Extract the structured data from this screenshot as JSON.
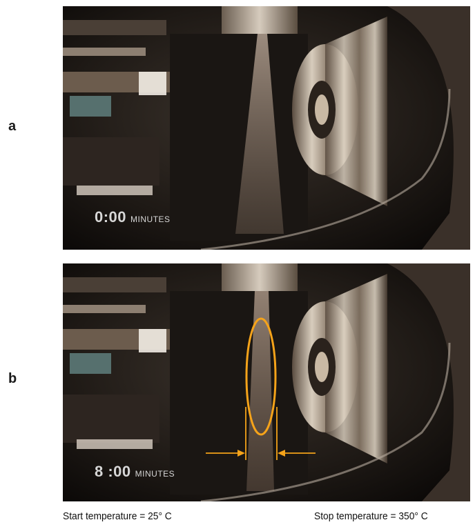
{
  "panels": [
    {
      "label": "a",
      "time": "0:00",
      "unit": "MINUTES"
    },
    {
      "label": "b",
      "time": "8 :00",
      "unit": "MINUTES"
    }
  ],
  "captions": {
    "start": "Start temperature = 25° C",
    "stop": "Stop temperature = 350° C"
  },
  "colors": {
    "highlight": "#f5a31a",
    "background": "#ffffff"
  }
}
